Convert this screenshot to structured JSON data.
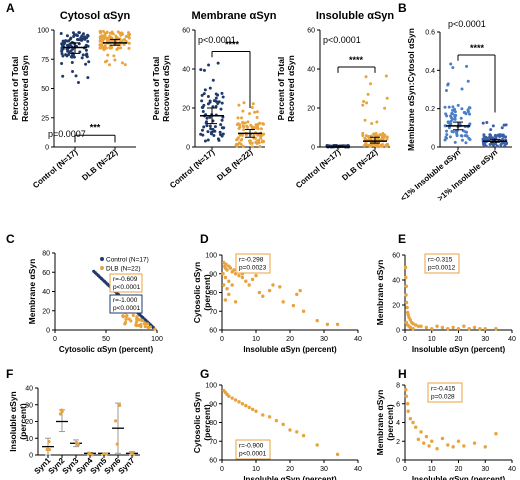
{
  "colors": {
    "control": "#1f3a6b",
    "dlb": "#e8a33c",
    "mid_blue": "#4a7fc8",
    "axis": "#000000"
  },
  "panel_letters": {
    "A": "A",
    "B": "B",
    "C": "C",
    "D": "D",
    "E": "E",
    "F": "F",
    "G": "G",
    "H": "H"
  },
  "chart_data": [
    {
      "panel": "A1",
      "type": "scatter",
      "title": "Cytosol αSyn",
      "ylabel": "Percent of Total Recovered αSyn",
      "categories": [
        "Control (N=17)",
        "DLB (N=22)"
      ],
      "ylim": [
        0,
        100
      ],
      "yticks": [
        0,
        25,
        50,
        75,
        100
      ],
      "series": [
        {
          "name": "Control (N=17)",
          "mean": 85,
          "error": [
            80,
            89
          ]
        },
        {
          "name": "DLB (N=22)",
          "mean": 89,
          "error": [
            87,
            92
          ]
        }
      ],
      "annotations": {
        "p_value": "p=0.0007",
        "significance": "***"
      }
    },
    {
      "panel": "A2",
      "type": "scatter",
      "title": "Membrane αSyn",
      "ylabel": "Percent of Total Recovered αSyn",
      "categories": [
        "Control (N=17)",
        "DLB (N=22)"
      ],
      "ylim": [
        0,
        60
      ],
      "yticks": [
        0,
        20,
        40,
        60
      ],
      "series": [
        {
          "name": "Control (N=17)",
          "mean": 16,
          "error": [
            12,
            20
          ]
        },
        {
          "name": "DLB (N=22)",
          "mean": 7,
          "error": [
            5,
            9
          ]
        }
      ],
      "annotations": {
        "p_value": "p<0.0001",
        "significance": "****"
      }
    },
    {
      "panel": "A3",
      "type": "scatter",
      "title": "Insoluble αSyn",
      "ylabel": "Percent of Total Recovered αSyn",
      "categories": [
        "Control (N=17)",
        "DLB (N=22)"
      ],
      "ylim": [
        0,
        60
      ],
      "yticks": [
        0,
        20,
        40,
        60
      ],
      "series": [
        {
          "name": "Control (N=17)",
          "mean": 0,
          "error": [
            0,
            0.5
          ]
        },
        {
          "name": "DLB (N=22)",
          "mean": 3,
          "error": [
            2,
            5
          ]
        }
      ],
      "annotations": {
        "p_value": "p<0.0001",
        "significance": "****"
      }
    },
    {
      "panel": "B",
      "type": "scatter",
      "ylabel": "Membrane αSyn:Cytosol αSyn",
      "categories": [
        "<1% Insoluble αSyn",
        ">1% Insoluble αSyn"
      ],
      "ylim": [
        0,
        0.6
      ],
      "yticks": [
        0.0,
        0.2,
        0.4,
        0.6
      ],
      "series": [
        {
          "name": "<1% Insoluble αSyn",
          "mean": 0.11,
          "error": [
            0.09,
            0.13
          ]
        },
        {
          "name": ">1% Insoluble αSyn",
          "mean": 0.03,
          "error": [
            0.025,
            0.04
          ]
        }
      ],
      "annotations": {
        "p_value": "p<0.0001",
        "significance": "****"
      }
    },
    {
      "panel": "C",
      "type": "scatter",
      "xlabel": "Cytosolic αSyn (percent)",
      "ylabel": "Membrane αSyn",
      "xlim": [
        0,
        100
      ],
      "xticks": [
        0,
        50,
        100
      ],
      "ylim": [
        0,
        80
      ],
      "yticks": [
        0,
        20,
        40,
        60,
        80
      ],
      "series": [
        {
          "name": "Control (N=17)",
          "stat": [
            "r=-1.000",
            "p<0.0001"
          ]
        },
        {
          "name": "DLB (N=22)",
          "stat": [
            "r=-0.609",
            "p<0.0001"
          ]
        }
      ]
    },
    {
      "panel": "D",
      "type": "scatter",
      "xlabel": "Insoluble αSyn (percent)",
      "ylabel": "Cytosolic αSyn (percent)",
      "xlim": [
        0,
        40
      ],
      "xticks": [
        0,
        10,
        20,
        30,
        40
      ],
      "ylim": [
        60,
        100
      ],
      "yticks": [
        60,
        70,
        80,
        90,
        100
      ],
      "stat": [
        "r=-0.298",
        "p=0.0023"
      ],
      "points": [
        [
          0.5,
          96
        ],
        [
          0.8,
          94
        ],
        [
          1,
          93
        ],
        [
          1.2,
          95
        ],
        [
          1.5,
          92
        ],
        [
          2,
          94
        ],
        [
          2.5,
          93
        ],
        [
          3,
          91
        ],
        [
          3.5,
          92
        ],
        [
          4,
          90
        ],
        [
          5,
          89
        ],
        [
          6,
          88
        ],
        [
          6,
          90
        ],
        [
          7,
          86
        ],
        [
          8,
          84
        ],
        [
          9,
          87
        ],
        [
          10,
          89
        ],
        [
          11,
          80
        ],
        [
          12,
          78
        ],
        [
          14,
          81
        ],
        [
          15,
          84
        ],
        [
          17,
          83
        ],
        [
          18,
          75
        ],
        [
          21,
          73
        ],
        [
          22,
          79
        ],
        [
          23,
          81
        ],
        [
          24,
          70
        ],
        [
          28,
          65
        ],
        [
          31,
          63
        ],
        [
          34,
          63
        ],
        [
          0.3,
          90
        ],
        [
          1,
          88
        ],
        [
          2,
          86
        ],
        [
          3,
          84
        ],
        [
          1.5,
          82
        ],
        [
          0.5,
          84
        ],
        [
          2,
          79
        ],
        [
          1,
          76
        ],
        [
          4,
          75
        ]
      ]
    },
    {
      "panel": "E",
      "type": "scatter",
      "xlabel": "Insoluble αSyn (percent)",
      "ylabel": "Membrane αSyn",
      "xlim": [
        0,
        40
      ],
      "xticks": [
        0,
        10,
        20,
        30,
        40
      ],
      "ylim": [
        0,
        60
      ],
      "yticks": [
        0,
        20,
        40,
        60
      ],
      "stat": [
        "r=-0.315",
        "p=0.0012"
      ],
      "points": [
        [
          0.2,
          50
        ],
        [
          0.3,
          42
        ],
        [
          0.5,
          35
        ],
        [
          0.4,
          28
        ],
        [
          0.6,
          22
        ],
        [
          0.8,
          18
        ],
        [
          1,
          14
        ],
        [
          1.2,
          12
        ],
        [
          1.5,
          10
        ],
        [
          2,
          8
        ],
        [
          2.5,
          6
        ],
        [
          3,
          5
        ],
        [
          4,
          4
        ],
        [
          5,
          3
        ],
        [
          6,
          3
        ],
        [
          8,
          2
        ],
        [
          10,
          1
        ],
        [
          12,
          3
        ],
        [
          14,
          2
        ],
        [
          16,
          1
        ],
        [
          18,
          2
        ],
        [
          20,
          1
        ],
        [
          22,
          3
        ],
        [
          24,
          1
        ],
        [
          26,
          2
        ],
        [
          28,
          1
        ],
        [
          30,
          1
        ],
        [
          34,
          1
        ],
        [
          0.5,
          6
        ],
        [
          1,
          4
        ],
        [
          1.5,
          3
        ],
        [
          2,
          2
        ],
        [
          3,
          1
        ]
      ]
    },
    {
      "panel": "F",
      "type": "scatter",
      "ylabel": "Insoluble αSyn (percent)",
      "categories": [
        "Syn1",
        "Syn2",
        "Syn3",
        "Syn4",
        "Syn5",
        "Syn6",
        "Syn7"
      ],
      "ylim": [
        0,
        40
      ],
      "yticks": [
        0,
        10,
        20,
        30,
        40
      ],
      "series": [
        {
          "name": "mean",
          "values": [
            5,
            20,
            7,
            1,
            1,
            16,
            1
          ]
        }
      ]
    },
    {
      "panel": "G",
      "type": "scatter",
      "xlabel": "Insoluble αSyn (percent)",
      "ylabel": "Cytosolic αSyn (percent)",
      "xlim": [
        0,
        40
      ],
      "xticks": [
        0,
        10,
        20,
        30,
        40
      ],
      "ylim": [
        60,
        100
      ],
      "yticks": [
        60,
        70,
        80,
        90,
        100
      ],
      "stat": [
        "r=-0.900",
        "p<0.0001"
      ],
      "points": [
        [
          0.5,
          97
        ],
        [
          1,
          96
        ],
        [
          1.5,
          95
        ],
        [
          2,
          94
        ],
        [
          3,
          93
        ],
        [
          4,
          92
        ],
        [
          5,
          91
        ],
        [
          6,
          90
        ],
        [
          7,
          89
        ],
        [
          8,
          88
        ],
        [
          9,
          87
        ],
        [
          10,
          86
        ],
        [
          12,
          84
        ],
        [
          14,
          83
        ],
        [
          16,
          81
        ],
        [
          18,
          79
        ],
        [
          20,
          76
        ],
        [
          22,
          75
        ],
        [
          24,
          73
        ],
        [
          28,
          68
        ],
        [
          34,
          63
        ]
      ]
    },
    {
      "panel": "H",
      "type": "scatter",
      "xlabel": "Insoluble αSyn (percent)",
      "ylabel": "Membrane αSyn (percent)",
      "xlim": [
        0,
        40
      ],
      "xticks": [
        0,
        10,
        20,
        30,
        40
      ],
      "ylim": [
        0,
        8
      ],
      "yticks": [
        0,
        2,
        4,
        6,
        8
      ],
      "stat": [
        "r=-0.415",
        "p=0.028"
      ],
      "points": [
        [
          0.3,
          7.5
        ],
        [
          0.5,
          6.8
        ],
        [
          1,
          6
        ],
        [
          1.2,
          5.2
        ],
        [
          2,
          4.4
        ],
        [
          3,
          4
        ],
        [
          4,
          3.5
        ],
        [
          5,
          2.2
        ],
        [
          6,
          3
        ],
        [
          7,
          1.8
        ],
        [
          8,
          2.5
        ],
        [
          9,
          1.5
        ],
        [
          10,
          2
        ],
        [
          12,
          1.2
        ],
        [
          14,
          2.3
        ],
        [
          16,
          1.6
        ],
        [
          18,
          1.4
        ],
        [
          20,
          2
        ],
        [
          22,
          1.5
        ],
        [
          26,
          1.8
        ],
        [
          30,
          1.4
        ],
        [
          34,
          2.8
        ]
      ]
    }
  ]
}
